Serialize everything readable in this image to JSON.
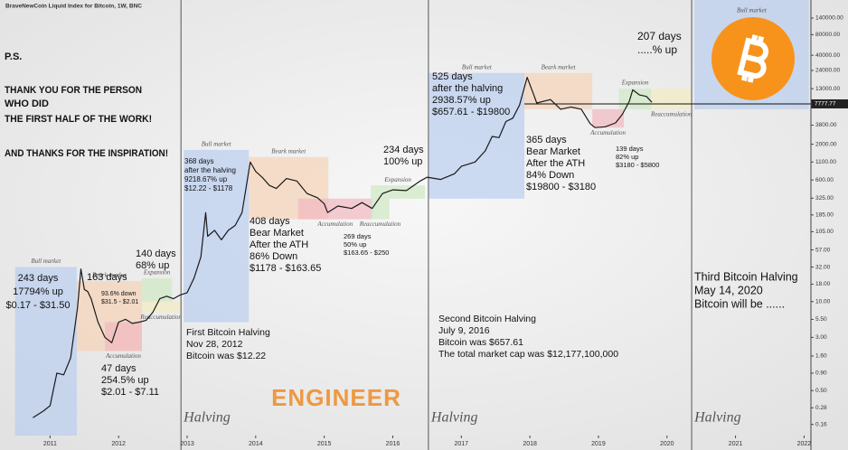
{
  "chart_data": {
    "type": "line",
    "title": "BraveNewCoin Liquid Index for Bitcoin, 1W, BNC",
    "log_scale": true,
    "grid": false,
    "color": "#1a1a1a",
    "xlim": [
      2010.27,
      2022.1
    ],
    "ylim": [
      0.11,
      257000
    ],
    "xticks": [
      2011,
      2012,
      2013,
      2014,
      2015,
      2016,
      2017,
      2018,
      2019,
      2020,
      2021,
      2022
    ],
    "yticks": [
      {
        "value": 140000,
        "label": "140000.00"
      },
      {
        "value": 80000,
        "label": "80000.00"
      },
      {
        "value": 40000,
        "label": "40000.00"
      },
      {
        "value": 24000,
        "label": "24000.00"
      },
      {
        "value": 13000,
        "label": "13000.00"
      },
      {
        "value": 3800,
        "label": "3800.00"
      },
      {
        "value": 2000,
        "label": "2000.00"
      },
      {
        "value": 1100,
        "label": "1100.00"
      },
      {
        "value": 600,
        "label": "600.00"
      },
      {
        "value": 325,
        "label": "325.00"
      },
      {
        "value": 185,
        "label": "185.00"
      },
      {
        "value": 105,
        "label": "105.00"
      },
      {
        "value": 57,
        "label": "57.00"
      },
      {
        "value": 32,
        "label": "32.00"
      },
      {
        "value": 18,
        "label": "18.00"
      },
      {
        "value": 10,
        "label": "10.00"
      },
      {
        "value": 5.5,
        "label": "5.50"
      },
      {
        "value": 3,
        "label": "3.00"
      },
      {
        "value": 1.6,
        "label": "1.60"
      },
      {
        "value": 0.9,
        "label": "0.90"
      },
      {
        "value": 0.5,
        "label": "0.50"
      },
      0.28,
      0.16
    ],
    "last_price": 7777.77,
    "x": [
      2010.75,
      2010.9,
      2011.0,
      2011.1,
      2011.2,
      2011.3,
      2011.4,
      2011.45,
      2011.5,
      2011.55,
      2011.6,
      2011.7,
      2011.8,
      2011.9,
      2012.0,
      2012.1,
      2012.2,
      2012.3,
      2012.4,
      2012.5,
      2012.6,
      2012.7,
      2012.8,
      2012.9,
      2013.0,
      2013.1,
      2013.2,
      2013.27,
      2013.3,
      2013.4,
      2013.5,
      2013.6,
      2013.7,
      2013.8,
      2013.92,
      2014.0,
      2014.1,
      2014.2,
      2014.3,
      2014.45,
      2014.6,
      2014.75,
      2014.9,
      2015.0,
      2015.05,
      2015.2,
      2015.4,
      2015.55,
      2015.7,
      2015.85,
      2016.0,
      2016.2,
      2016.4,
      2016.5,
      2016.7,
      2016.9,
      2017.0,
      2017.2,
      2017.35,
      2017.45,
      2017.55,
      2017.65,
      2017.75,
      2017.85,
      2017.96,
      2018.05,
      2018.1,
      2018.3,
      2018.45,
      2018.6,
      2018.75,
      2018.88,
      2018.95,
      2019.1,
      2019.25,
      2019.35,
      2019.45,
      2019.5,
      2019.6,
      2019.7,
      2019.78
    ],
    "values": [
      0.2,
      0.25,
      0.3,
      0.9,
      0.85,
      1.5,
      8,
      30,
      15,
      14,
      11,
      5,
      3,
      2.5,
      5,
      5.5,
      4.8,
      5,
      5.3,
      7,
      11,
      12,
      11,
      12.5,
      13.5,
      22,
      45,
      200,
      90,
      110,
      80,
      110,
      130,
      200,
      1100,
      800,
      650,
      500,
      450,
      630,
      580,
      380,
      330,
      270,
      200,
      250,
      230,
      280,
      230,
      380,
      430,
      420,
      580,
      660,
      610,
      740,
      950,
      1100,
      1600,
      2600,
      2500,
      4300,
      4800,
      7500,
      19000,
      11000,
      8000,
      9000,
      6500,
      7000,
      6500,
      4000,
      3500,
      3600,
      4100,
      5500,
      8500,
      12500,
      10500,
      10000,
      8200
    ],
    "zones": [
      {
        "label": "Bull market",
        "x0": 2010.49,
        "x1": 2011.39,
        "lo": 0.11,
        "hi": 32,
        "color": "#b9cdef"
      },
      {
        "label": "Beark market",
        "x0": 2011.39,
        "x1": 2012.34,
        "lo": 1.9,
        "hi": 20,
        "color": "#f5d3b8"
      },
      {
        "label": "Accumulation",
        "x0": 2011.8,
        "x1": 2012.34,
        "lo": 1.9,
        "hi": 5,
        "color": "#f2b8c0"
      },
      {
        "label": "Expansion",
        "x0": 2012.34,
        "x1": 2012.78,
        "lo": 10,
        "hi": 22,
        "color": "#cfe8c3"
      },
      {
        "label": "Reaccumulation",
        "x0": 2012.34,
        "x1": 2012.9,
        "lo": 7,
        "hi": 10,
        "color": "#f3ecc0"
      },
      {
        "label": "Bull market",
        "x0": 2012.95,
        "x1": 2013.9,
        "lo": 5,
        "hi": 1650,
        "color": "#b9cdef"
      },
      {
        "label": "Beark market",
        "x0": 2013.9,
        "x1": 2015.06,
        "lo": 160,
        "hi": 1300,
        "color": "#f5d3b8"
      },
      {
        "label": "Accumulation",
        "x0": 2014.62,
        "x1": 2015.7,
        "lo": 160,
        "hi": 320,
        "color": "#f2b8c0"
      },
      {
        "label": "Expansion",
        "x0": 2015.68,
        "x1": 2016.47,
        "lo": 320,
        "hi": 500,
        "color": "#cfe8c3"
      },
      {
        "label": "Reaccumulation",
        "x0": 2015.68,
        "x1": 2015.95,
        "lo": 160,
        "hi": 320,
        "color": "#cfe8c3"
      },
      {
        "label": "Bull market",
        "x0": 2016.53,
        "x1": 2017.92,
        "lo": 320,
        "hi": 22000,
        "color": "#b9cdef"
      },
      {
        "label": "Beark market",
        "x0": 2017.92,
        "x1": 2018.91,
        "lo": 6500,
        "hi": 22000,
        "color": "#f5d3b8"
      },
      {
        "label": "Accumulation",
        "x0": 2018.91,
        "x1": 2019.37,
        "lo": 3500,
        "hi": 6500,
        "color": "#f2b8c0"
      },
      {
        "label": "Expansion",
        "x0": 2019.3,
        "x1": 2019.77,
        "lo": 6500,
        "hi": 13000,
        "color": "#cfe8c3"
      },
      {
        "label": "Reaccumulation",
        "x0": 2019.77,
        "x1": 2020.36,
        "lo": 6500,
        "hi": 13000,
        "color": "#f3ecc0"
      },
      {
        "label": "Bull market",
        "x0": 2020.4,
        "x1": 2022.07,
        "lo": 6500,
        "hi": 257000,
        "color": "#b9cdef"
      }
    ],
    "halvings": [
      2012.91,
      2016.52,
      2020.36
    ],
    "halving_label": "Halving",
    "annotations": [
      [
        "243 days",
        "17794% up",
        "$0.17 - $31.50"
      ],
      [
        "163 days"
      ],
      [
        "93.6% down",
        "$31.5 - $2.01"
      ],
      [
        "140 days",
        "68% up"
      ],
      [
        "47 days",
        "254.5% up",
        "$2.01 - $7.11"
      ],
      [
        "368 days",
        "after the halving",
        "9218.67% up",
        "$12.22 - $1178"
      ],
      [
        "408 days",
        "Bear Market",
        "After the ATH",
        "86% Down",
        "$1178 - $163.65"
      ],
      [
        "269 days",
        "50% up",
        "$163.65 - $250"
      ],
      [
        "234 days",
        "100% up"
      ],
      [
        "525 days",
        "after the halving",
        "2938.57% up",
        "$657.61 - $19800"
      ],
      [
        "365 days",
        "Bear Market",
        "After the ATH",
        "84% Down",
        "$19800 - $3180"
      ],
      [
        "139 days",
        "82% up",
        "$3180 - $5800"
      ],
      [
        "207 days",
        ".....% up"
      ],
      [
        "First Bitcoin Halving",
        "Nov 28, 2012",
        "Bitcoin was $12.22"
      ],
      [
        "Second Bitcoin Halving",
        "July 9, 2016",
        "Bitcoin was $657.61",
        "The total market cap was $12,177,100,000"
      ],
      [
        "Third Bitcoin Halving",
        "May 14, 2020",
        "Bitcoin will be ......"
      ]
    ],
    "notes": [
      "P.S.",
      "THANK YOU FOR THE PERSON",
      "WHO DID",
      "THE FIRST HALF OF THE WORK!",
      "AND THANKS FOR THE INSPIRATION!"
    ],
    "watermark": "ENGINEER"
  }
}
